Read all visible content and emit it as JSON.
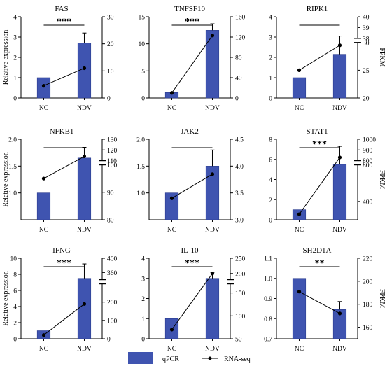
{
  "chart_data": [
    {
      "type": "bar+line",
      "title": "FAS",
      "categories": [
        "NC",
        "NDV"
      ],
      "left": {
        "label": "Relative expression",
        "min": 0,
        "max": 4,
        "ticks": [
          0,
          1,
          2,
          3,
          4
        ]
      },
      "right": {
        "label": "",
        "segments": [
          {
            "min": 0,
            "max": 30,
            "ticks": [
              0,
              10,
              20,
              30
            ]
          }
        ]
      },
      "qpcr": [
        1.0,
        2.7
      ],
      "qpcr_err": [
        0,
        0.5
      ],
      "rnaseq": [
        4.5,
        11.0
      ],
      "significance": "***"
    },
    {
      "type": "bar+line",
      "title": "TNFSF10",
      "categories": [
        "NC",
        "NDV"
      ],
      "left": {
        "label": "",
        "min": 0,
        "max": 15,
        "ticks": [
          0,
          5,
          10,
          15
        ]
      },
      "right": {
        "label": "",
        "segments": [
          {
            "min": 0,
            "max": 160,
            "ticks": [
              0,
              40,
              80,
              120,
              160
            ]
          }
        ]
      },
      "qpcr": [
        1.0,
        12.5
      ],
      "qpcr_err": [
        0,
        1.2
      ],
      "rnaseq": [
        10,
        123
      ],
      "significance": "***"
    },
    {
      "type": "bar+line",
      "title": "RIPK1",
      "categories": [
        "NC",
        "NDV"
      ],
      "left": {
        "label": "",
        "min": 0,
        "max": 4,
        "ticks": [
          0,
          1,
          2,
          3,
          4
        ]
      },
      "right": {
        "label": "FPKM",
        "segments": [
          {
            "min": 20,
            "max": 30,
            "ticks": [
              20,
              25,
              30
            ]
          },
          {
            "min": 38,
            "max": 40,
            "ticks": [
              38,
              39,
              40
            ]
          }
        ]
      },
      "qpcr": [
        1.0,
        2.15
      ],
      "qpcr_err": [
        0,
        0.9
      ],
      "rnaseq": [
        25,
        29.5
      ],
      "significance": ""
    },
    {
      "type": "bar+line",
      "title": "NFKB1",
      "categories": [
        "NC",
        "NDV"
      ],
      "left": {
        "label": "Relative expression",
        "min": 0.5,
        "max": 2.0,
        "ticks": [
          1.0,
          1.5,
          2.0
        ]
      },
      "right": {
        "label": "",
        "segments": [
          {
            "min": 80,
            "max": 100,
            "ticks": [
              80,
              90,
              100
            ]
          },
          {
            "min": 110,
            "max": 130,
            "ticks": [
              110,
              120,
              130
            ]
          }
        ]
      },
      "qpcr": [
        1.0,
        1.65
      ],
      "qpcr_err": [
        0,
        0.2
      ],
      "rnaseq": [
        95,
        114
      ],
      "significance": ""
    },
    {
      "type": "bar+line",
      "title": "JAK2",
      "categories": [
        "NC",
        "NDV"
      ],
      "left": {
        "label": "",
        "min": 0.5,
        "max": 2.0,
        "ticks": [
          1.0,
          1.5,
          2.0
        ]
      },
      "right": {
        "label": "",
        "segments": [
          {
            "min": 3.0,
            "max": 4.5,
            "ticks": [
              3.0,
              3.5,
              4.0,
              4.5
            ]
          }
        ]
      },
      "qpcr": [
        1.0,
        1.5
      ],
      "qpcr_err": [
        0,
        0.3
      ],
      "rnaseq": [
        3.4,
        3.85
      ],
      "significance": ""
    },
    {
      "type": "bar+line",
      "title": "STAT1",
      "categories": [
        "NC",
        "NDV"
      ],
      "left": {
        "label": "",
        "min": 0,
        "max": 8,
        "ticks": [
          0,
          2,
          4,
          6,
          8
        ]
      },
      "right": {
        "label": "FPKM",
        "segments": [
          {
            "min": 200,
            "max": 800,
            "ticks": [
              400,
              800
            ]
          },
          {
            "min": 800,
            "max": 1000,
            "ticks": [
              800,
              900,
              1000
            ]
          }
        ]
      },
      "qpcr": [
        1.0,
        5.5
      ],
      "qpcr_err": [
        0,
        1.8
      ],
      "rnaseq": [
        260,
        830
      ],
      "significance": "***"
    },
    {
      "type": "bar+line",
      "title": "IFNG",
      "categories": [
        "NC",
        "NDV"
      ],
      "left": {
        "label": "Relative expression",
        "min": 0,
        "max": 10,
        "ticks": [
          0,
          2,
          4,
          6,
          8,
          10
        ]
      },
      "right": {
        "label": "",
        "segments": [
          {
            "min": 0,
            "max": 300,
            "ticks": [
              0,
              100,
              200
            ]
          },
          {
            "min": 340,
            "max": 400,
            "ticks": [
              360,
              400
            ]
          }
        ]
      },
      "qpcr": [
        1.0,
        7.5
      ],
      "qpcr_err": [
        0,
        1.8
      ],
      "rnaseq": [
        20,
        190
      ],
      "significance": "***"
    },
    {
      "type": "bar+line",
      "title": "IL-10",
      "categories": [
        "NC",
        "NDV"
      ],
      "left": {
        "label": "",
        "min": 0,
        "max": 4,
        "ticks": [
          0,
          1,
          2,
          3,
          4
        ]
      },
      "right": {
        "label": "",
        "segments": [
          {
            "min": 50,
            "max": 170,
            "ticks": [
              50,
              100,
              150
            ]
          },
          {
            "min": 180,
            "max": 250,
            "ticks": [
              200,
              250
            ]
          }
        ]
      },
      "qpcr": [
        1.0,
        3.0
      ],
      "qpcr_err": [
        0,
        0.3
      ],
      "rnaseq": [
        70,
        200
      ],
      "significance": "***"
    },
    {
      "type": "bar+line",
      "title": "SH2D1A",
      "categories": [
        "NC",
        "NDV"
      ],
      "left": {
        "label": "",
        "min": 0.7,
        "max": 1.1,
        "ticks": [
          0.7,
          0.8,
          0.9,
          1.0,
          1.1
        ]
      },
      "right": {
        "label": "FPKM",
        "segments": [
          {
            "min": 150,
            "max": 220,
            "ticks": [
              160,
              180,
              200,
              220
            ]
          }
        ]
      },
      "qpcr": [
        1.0,
        0.845
      ],
      "qpcr_err": [
        0,
        0.04
      ],
      "rnaseq": [
        191,
        172
      ],
      "significance": "**"
    }
  ],
  "legend": {
    "bar_label": "qPCR",
    "line_label": "RNA-seq"
  },
  "colors": {
    "bar": "#3f54b0",
    "bar_stroke": "#2c3d8f",
    "line": "#000000"
  }
}
